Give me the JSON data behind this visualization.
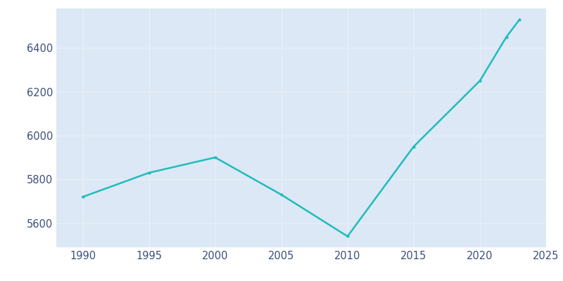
{
  "years": [
    1990,
    1995,
    2000,
    2005,
    2010,
    2015,
    2020,
    2022,
    2023
  ],
  "population": [
    5720,
    5830,
    5900,
    5730,
    5540,
    5950,
    6250,
    6450,
    6530
  ],
  "line_color": "#20BCBC",
  "marker_color": "#20BCBC",
  "background_color": "#ffffff",
  "plot_area_color": "#dce8f5",
  "xlabel": "",
  "ylabel": "",
  "xlim": [
    1988,
    2025
  ],
  "ylim": [
    5490,
    6580
  ],
  "xticks": [
    1990,
    1995,
    2000,
    2005,
    2010,
    2015,
    2020,
    2025
  ],
  "yticks": [
    5600,
    5800,
    6000,
    6200,
    6400
  ],
  "grid_color": "#e8eef8",
  "line_width": 1.8,
  "marker_size": 3,
  "tick_color": "#3d4f7a",
  "tick_fontsize": 10.5
}
